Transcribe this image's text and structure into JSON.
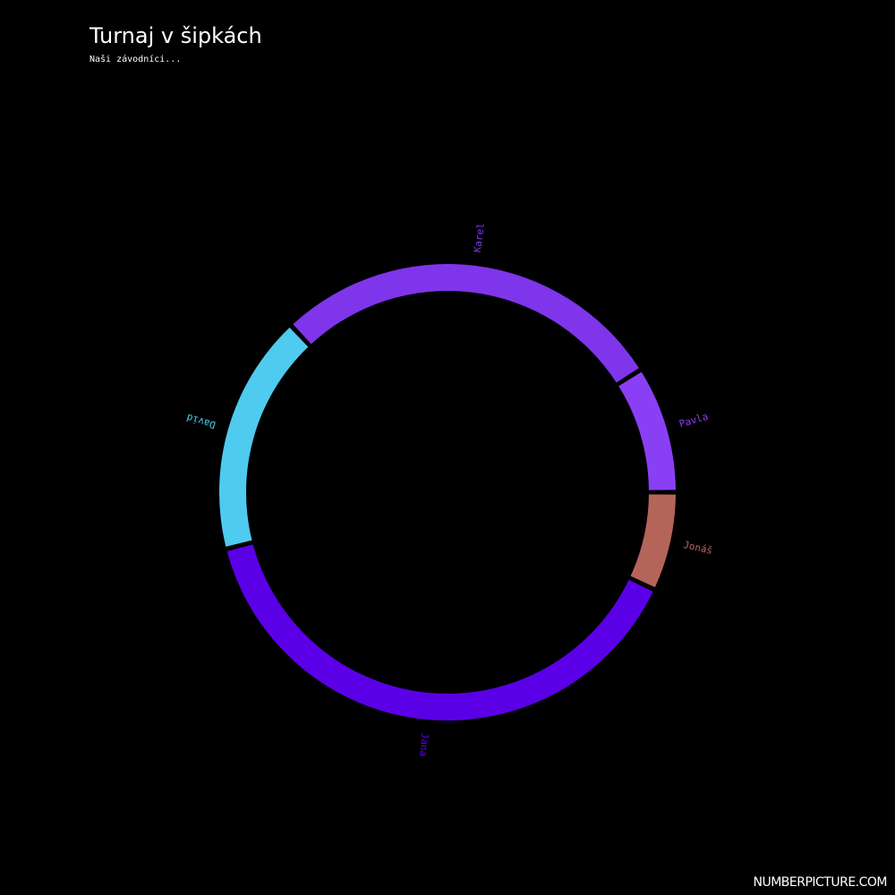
{
  "title": "Turnaj v šipkách",
  "subtitle": "Naši závodníci...",
  "watermark": "NUMBERPICTURE.COM",
  "chart_data": {
    "type": "pie",
    "variant": "donut",
    "title": "Turnaj v šipkách",
    "subtitle": "Naši závodníci...",
    "categories": [
      "Jonáš",
      "Jana",
      "David",
      "Karel",
      "Pavla"
    ],
    "values": [
      7,
      39,
      17,
      28,
      9
    ],
    "colors": [
      "#b5645a",
      "#5b00e6",
      "#4ecbef",
      "#7f35ea",
      "#8a3ff5"
    ],
    "start_angle_deg": 0,
    "direction": "clockwise"
  }
}
